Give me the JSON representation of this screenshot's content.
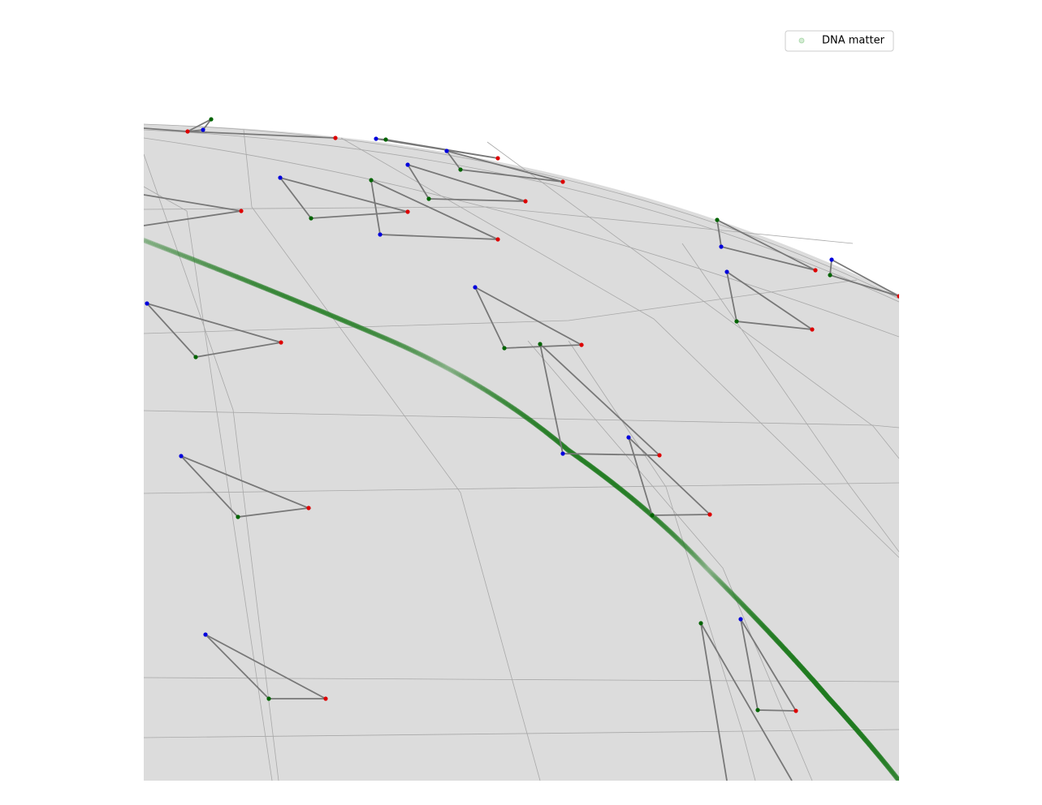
{
  "legend": {
    "label": "DNA matter"
  }
}
